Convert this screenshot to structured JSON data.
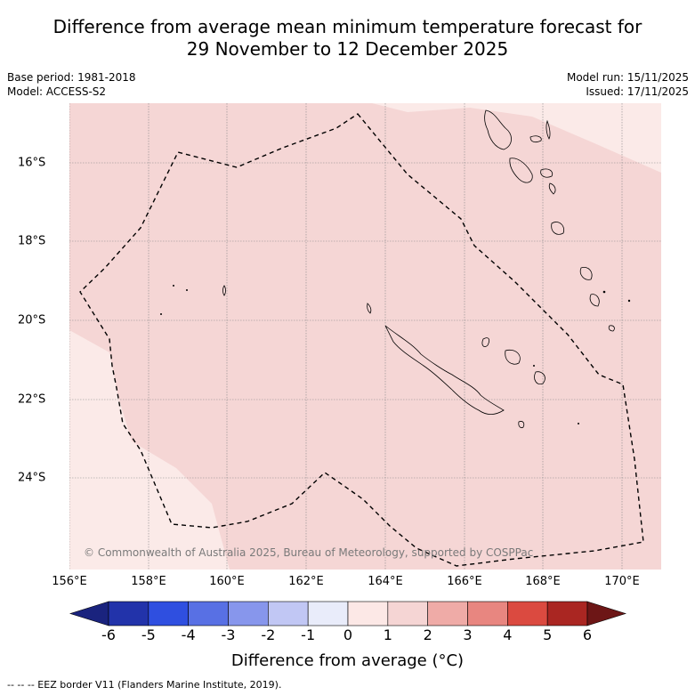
{
  "title_line1": "Difference from average mean minimum temperature forecast for",
  "title_line2": "29 November to 12 December 2025",
  "base_period": "Base period: 1981-2018",
  "model": "Model: ACCESS-S2",
  "model_run": "Model run: 15/11/2025",
  "issued": "Issued: 17/11/2025",
  "x_ticks": [
    "156°E",
    "158°E",
    "160°E",
    "162°E",
    "164°E",
    "166°E",
    "168°E",
    "170°E"
  ],
  "y_ticks": [
    "16°S",
    "18°S",
    "20°S",
    "22°S",
    "24°S"
  ],
  "copyright": "© Commonwealth of Australia 2025, Bureau of Meteorology, supported by COSPPac",
  "colorbar": {
    "labels": [
      "-6",
      "-5",
      "-4",
      "-3",
      "-2",
      "-1",
      "0",
      "1",
      "2",
      "3",
      "4",
      "5",
      "6"
    ],
    "colors": [
      "#1a237e",
      "#2233aa",
      "#2f4fe0",
      "#5870e4",
      "#8796ec",
      "#c1c7f4",
      "#e9ecfa",
      "#fce8e6",
      "#f5d5d4",
      "#efaba7",
      "#e88680",
      "#db4a40",
      "#aa2622",
      "#6d1616"
    ],
    "title": "Difference from average (°C)"
  },
  "colors": {
    "main_fill": "#f5d6d5",
    "light_fill": "#fbeae8",
    "grid": "#888888"
  },
  "footer": "--  --  -- EEZ border V11 (Flanders Marine Institute, 2019)."
}
